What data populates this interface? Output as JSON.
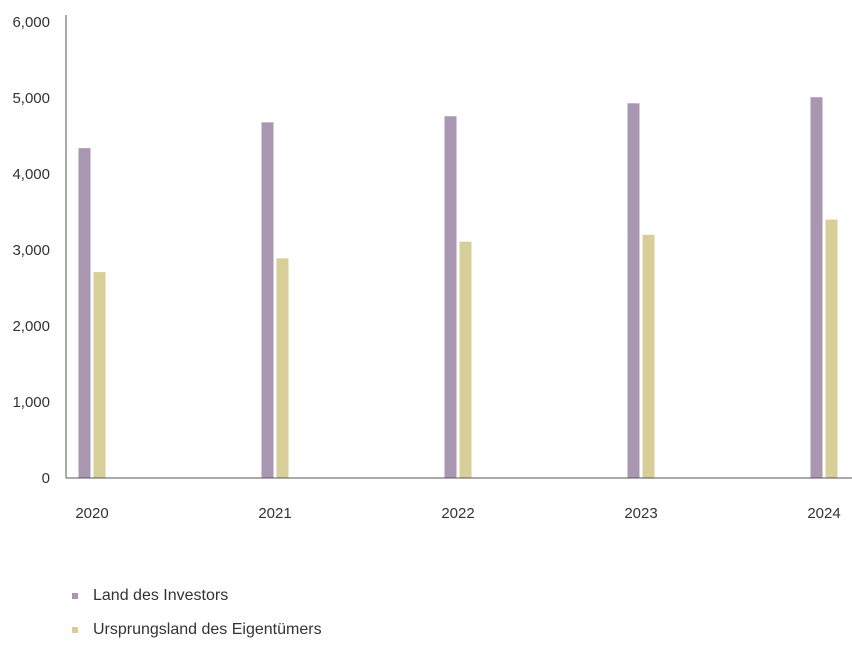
{
  "chart_data": {
    "type": "bar",
    "categories": [
      "2020",
      "2021",
      "2022",
      "2023",
      "2024"
    ],
    "series": [
      {
        "name": "Land des Investors",
        "color": "#a996b1",
        "values": [
          4340,
          4680,
          4760,
          4930,
          5010
        ]
      },
      {
        "name": "Ursprungsland des Eigentümers",
        "color": "#d8ce97",
        "values": [
          2710,
          2890,
          3110,
          3200,
          3400
        ]
      }
    ],
    "y_ticks": [
      "0",
      "1,000",
      "2,000",
      "3,000",
      "4,000",
      "5,000",
      "6,000"
    ],
    "ylim": [
      0,
      6000
    ],
    "grid": false,
    "legend_position": "bottom-left"
  }
}
